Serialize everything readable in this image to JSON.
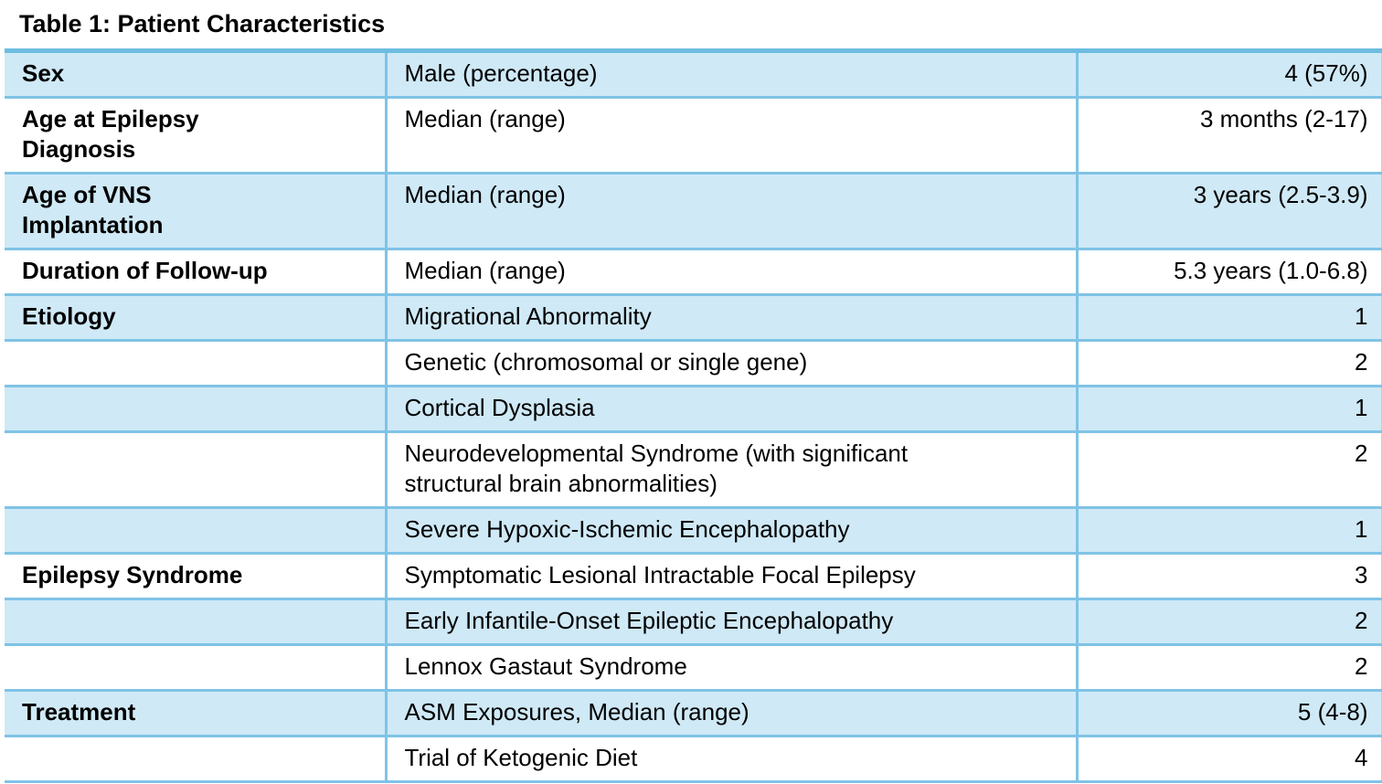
{
  "title": "Table 1: Patient Characteristics",
  "colors": {
    "row_shaded": "#cfe9f6",
    "row_plain": "#ffffff",
    "border_blue": "#7fc3e6",
    "text": "#000000"
  },
  "table": {
    "columns": [
      "category",
      "description",
      "value"
    ],
    "rows": [
      {
        "category": "Sex",
        "description": "Male (percentage)",
        "value": "4 (57%)"
      },
      {
        "category": "Age at Epilepsy\nDiagnosis",
        "description": "Median (range)",
        "value": "3 months (2-17)"
      },
      {
        "category": "Age of VNS\nImplantation",
        "description": "Median (range)",
        "value": "3 years (2.5-3.9)"
      },
      {
        "category": "Duration of Follow-up",
        "description": "Median (range)",
        "value": "5.3 years (1.0-6.8)"
      },
      {
        "category": "Etiology",
        "description": "Migrational Abnormality",
        "value": "1"
      },
      {
        "category": "",
        "description": "Genetic (chromosomal or single gene)",
        "value": "2"
      },
      {
        "category": "",
        "description": "Cortical Dysplasia",
        "value": "1"
      },
      {
        "category": "",
        "description": "Neurodevelopmental Syndrome (with significant\nstructural brain abnormalities)",
        "value": "2"
      },
      {
        "category": "",
        "description": "Severe Hypoxic-Ischemic Encephalopathy",
        "value": "1"
      },
      {
        "category": "Epilepsy Syndrome",
        "description": "Symptomatic Lesional Intractable Focal Epilepsy",
        "value": "3"
      },
      {
        "category": "",
        "description": "Early Infantile-Onset Epileptic Encephalopathy",
        "value": "2"
      },
      {
        "category": "",
        "description": "Lennox Gastaut Syndrome",
        "value": "2"
      },
      {
        "category": "Treatment",
        "description": "ASM Exposures, Median (range)",
        "value": "5 (4-8)"
      },
      {
        "category": "",
        "description": "Trial of Ketogenic Diet",
        "value": "4"
      }
    ]
  }
}
